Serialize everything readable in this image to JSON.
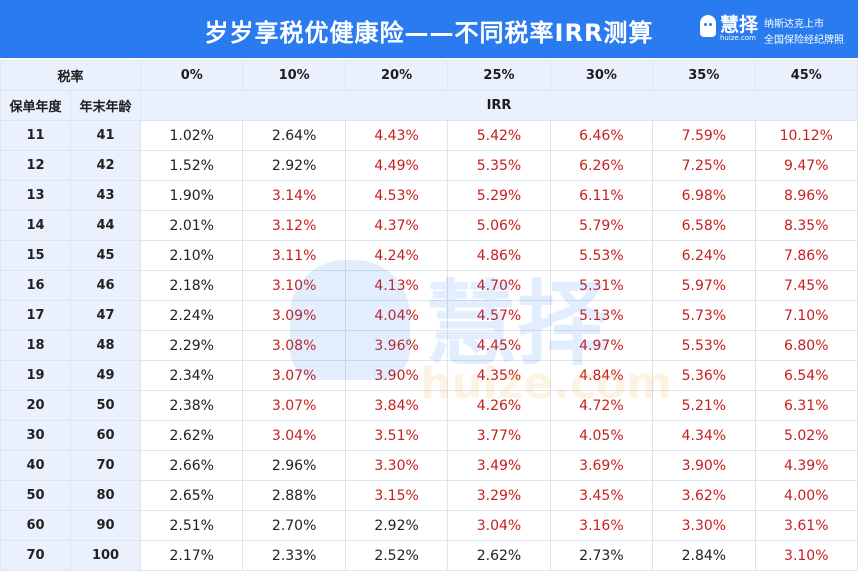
{
  "header": {
    "title": "岁岁享税优健康险——不同税率IRR测算",
    "logo_name": "慧择",
    "logo_domain": "huize.com",
    "logo_sub1": "纳斯达克上市",
    "logo_sub2": "全国保险经纪牌照"
  },
  "table": {
    "tax_label": "税率",
    "tax_rates": [
      "0%",
      "10%",
      "20%",
      "25%",
      "30%",
      "35%",
      "45%"
    ],
    "col_year": "保单年度",
    "col_age": "年末年龄",
    "irr_label": "IRR",
    "rows": [
      {
        "year": "11",
        "age": "41",
        "values": [
          "1.02%",
          "2.64%",
          "4.43%",
          "5.42%",
          "6.46%",
          "7.59%",
          "10.12%"
        ]
      },
      {
        "year": "12",
        "age": "42",
        "values": [
          "1.52%",
          "2.92%",
          "4.49%",
          "5.35%",
          "6.26%",
          "7.25%",
          "9.47%"
        ]
      },
      {
        "year": "13",
        "age": "43",
        "values": [
          "1.90%",
          "3.14%",
          "4.53%",
          "5.29%",
          "6.11%",
          "6.98%",
          "8.96%"
        ]
      },
      {
        "year": "14",
        "age": "44",
        "values": [
          "2.01%",
          "3.12%",
          "4.37%",
          "5.06%",
          "5.79%",
          "6.58%",
          "8.35%"
        ]
      },
      {
        "year": "15",
        "age": "45",
        "values": [
          "2.10%",
          "3.11%",
          "4.24%",
          "4.86%",
          "5.53%",
          "6.24%",
          "7.86%"
        ]
      },
      {
        "year": "16",
        "age": "46",
        "values": [
          "2.18%",
          "3.10%",
          "4.13%",
          "4.70%",
          "5.31%",
          "5.97%",
          "7.45%"
        ]
      },
      {
        "year": "17",
        "age": "47",
        "values": [
          "2.24%",
          "3.09%",
          "4.04%",
          "4.57%",
          "5.13%",
          "5.73%",
          "7.10%"
        ]
      },
      {
        "year": "18",
        "age": "48",
        "values": [
          "2.29%",
          "3.08%",
          "3.96%",
          "4.45%",
          "4.97%",
          "5.53%",
          "6.80%"
        ]
      },
      {
        "year": "19",
        "age": "49",
        "values": [
          "2.34%",
          "3.07%",
          "3.90%",
          "4.35%",
          "4.84%",
          "5.36%",
          "6.54%"
        ]
      },
      {
        "year": "20",
        "age": "50",
        "values": [
          "2.38%",
          "3.07%",
          "3.84%",
          "4.26%",
          "4.72%",
          "5.21%",
          "6.31%"
        ]
      },
      {
        "year": "30",
        "age": "60",
        "values": [
          "2.62%",
          "3.04%",
          "3.51%",
          "3.77%",
          "4.05%",
          "4.34%",
          "5.02%"
        ]
      },
      {
        "year": "40",
        "age": "70",
        "values": [
          "2.66%",
          "2.96%",
          "3.30%",
          "3.49%",
          "3.69%",
          "3.90%",
          "4.39%"
        ]
      },
      {
        "year": "50",
        "age": "80",
        "values": [
          "2.65%",
          "2.88%",
          "3.15%",
          "3.29%",
          "3.45%",
          "3.62%",
          "4.00%"
        ]
      },
      {
        "year": "60",
        "age": "90",
        "values": [
          "2.51%",
          "2.70%",
          "2.92%",
          "3.04%",
          "3.16%",
          "3.30%",
          "3.61%"
        ]
      },
      {
        "year": "70",
        "age": "100",
        "values": [
          "2.17%",
          "2.33%",
          "2.52%",
          "2.62%",
          "2.73%",
          "2.84%",
          "3.10%"
        ]
      }
    ],
    "highlight_threshold_pct": 3.0,
    "highlight_color": "#c81e1e"
  },
  "watermark": {
    "text": "慧择",
    "domain": "huize.com"
  },
  "colors": {
    "header_bg": "#2a7bf0",
    "header_row_bg": "#eaf1fc",
    "normal_text": "#222222"
  }
}
